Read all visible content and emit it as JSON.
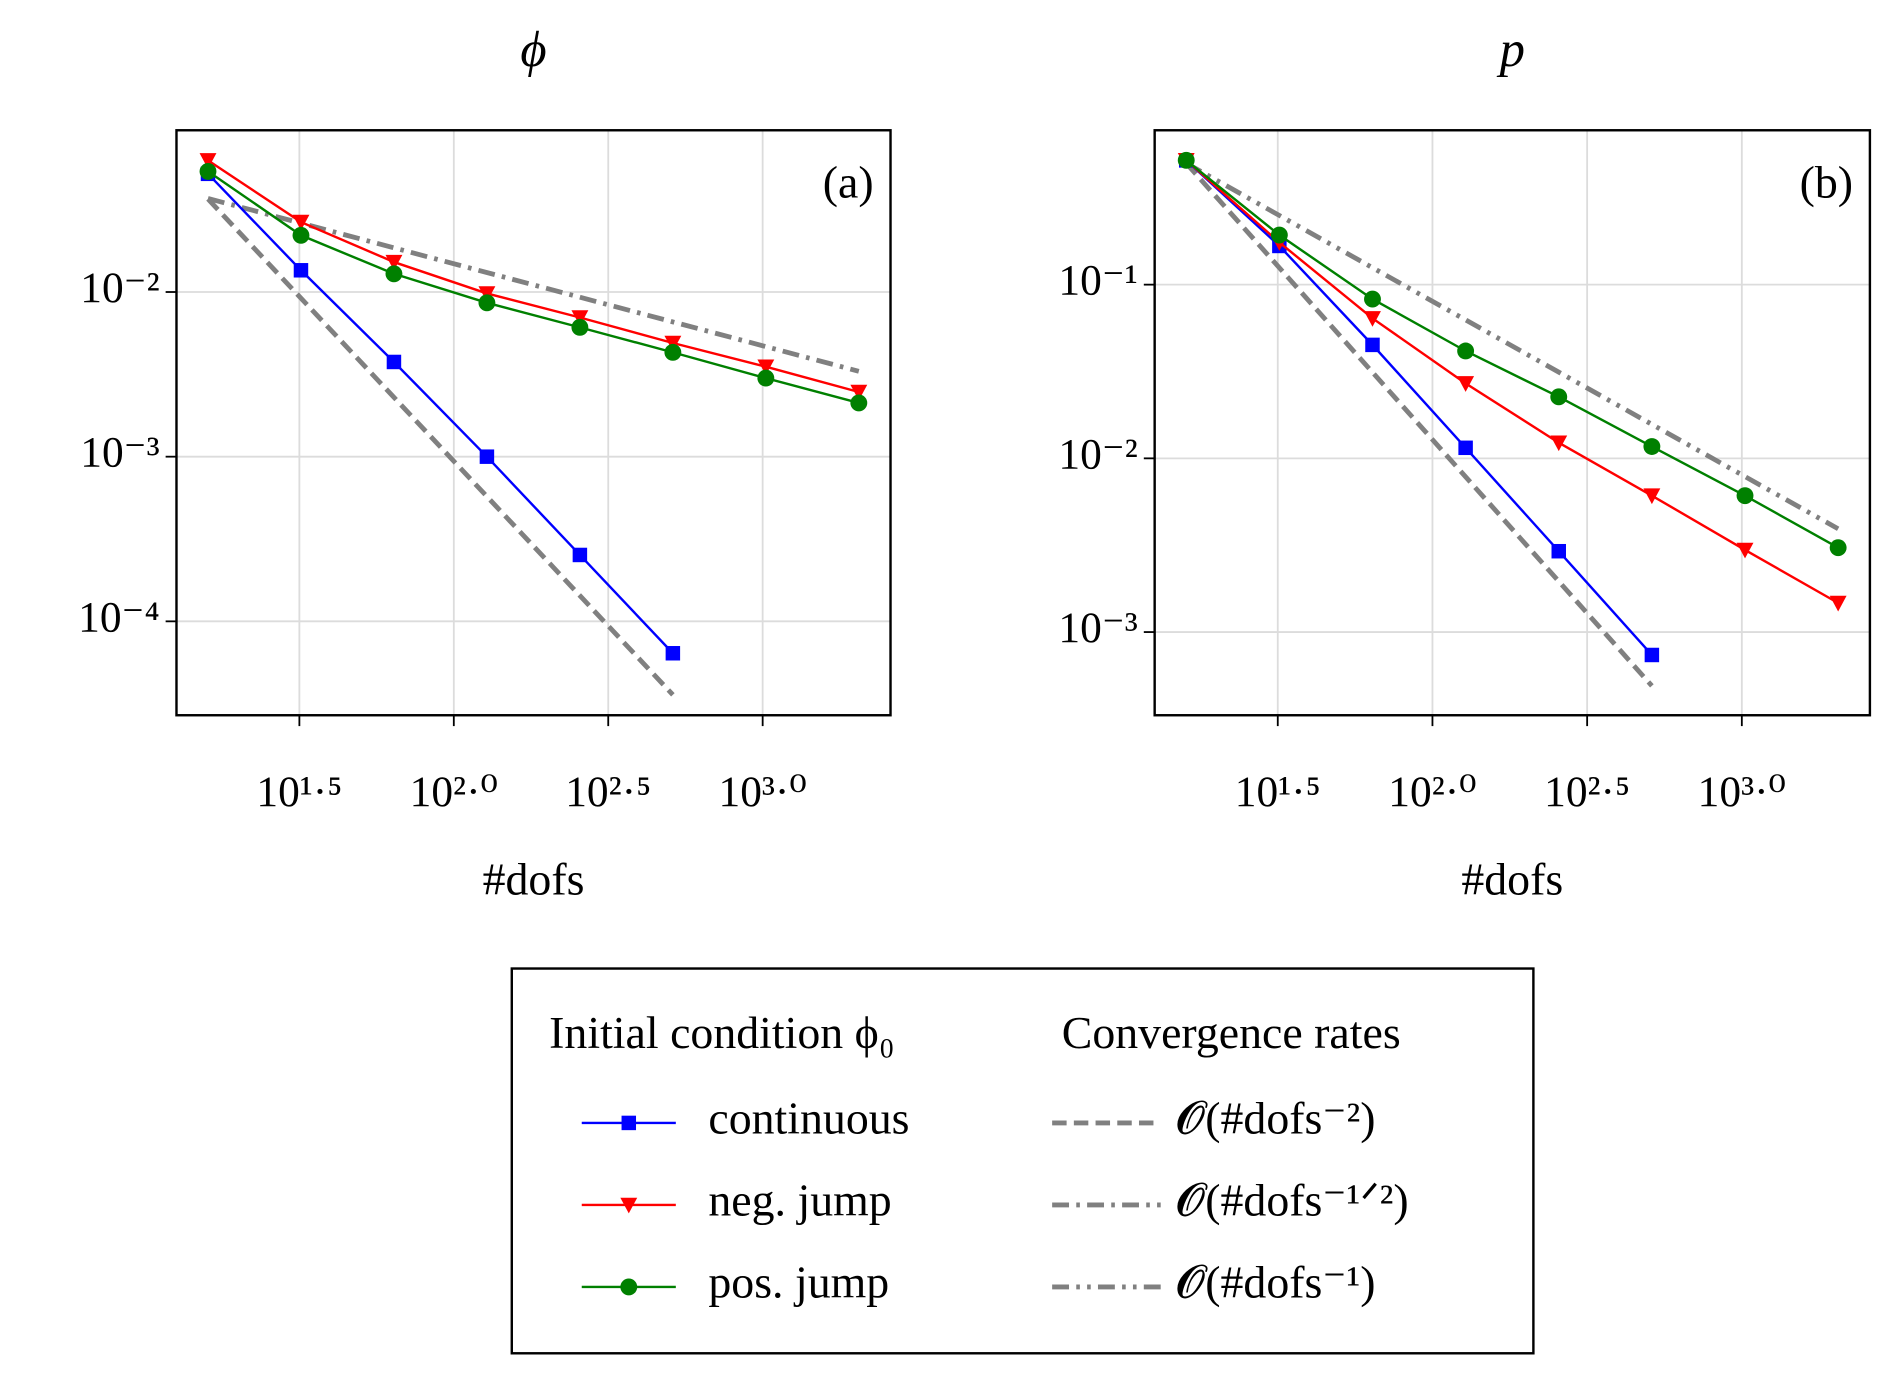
{
  "chart_data": [
    {
      "type": "line",
      "title": "ϕ",
      "panel_label": "(a)",
      "xlabel": "#dofs",
      "log_x": true,
      "log_y": true,
      "grid": true,
      "xlim": [
        12.65,
        2594
      ],
      "ylim": [
        2.69e-05,
        0.096
      ],
      "xticks": [
        {
          "value": 31.6228,
          "label": "10¹·⁵"
        },
        {
          "value": 100,
          "label": "10²·⁰"
        },
        {
          "value": 316.228,
          "label": "10²·⁵"
        },
        {
          "value": 1000,
          "label": "10³·⁰"
        }
      ],
      "yticks": [
        {
          "value": 0.01,
          "label": "10⁻²"
        },
        {
          "value": 0.001,
          "label": "10⁻³"
        },
        {
          "value": 0.0001,
          "label": "10⁻⁴"
        }
      ],
      "series": [
        {
          "name": "continuous",
          "color": "#0000ff",
          "marker": "square",
          "dash": "solid",
          "x": [
            16,
            32,
            64,
            128,
            256,
            512
          ],
          "values": [
            0.0522,
            0.01355,
            0.00376,
            0.001,
            0.000253,
            6.4e-05
          ]
        },
        {
          "name": "neg. jump",
          "color": "#ff0000",
          "marker": "triangle_down",
          "dash": "solid",
          "x": [
            16,
            32,
            64,
            128,
            256,
            512,
            1024,
            2048
          ],
          "values": [
            0.063,
            0.0266,
            0.0152,
            0.0098,
            0.007,
            0.0049,
            0.00352,
            0.00247
          ]
        },
        {
          "name": "pos. jump",
          "color": "#008000",
          "marker": "circle",
          "dash": "solid",
          "x": [
            16,
            32,
            64,
            128,
            256,
            512,
            1024,
            2048
          ],
          "values": [
            0.054,
            0.0221,
            0.0129,
            0.0086,
            0.0061,
            0.0043,
            0.003,
            0.00212
          ]
        },
        {
          "name": "𝓞(#dofs⁻²)",
          "color": "#808080",
          "dash": "dashed",
          "x": [
            16,
            512
          ],
          "values": [
            0.0367,
            3.58e-05
          ]
        },
        {
          "name": "𝓞(#dofs⁻¹ᐟ²)",
          "color": "#808080",
          "dash": "dashdot",
          "x": [
            16,
            2048
          ],
          "values": [
            0.037,
            0.0033
          ]
        }
      ]
    },
    {
      "type": "line",
      "title": "p",
      "panel_label": "(b)",
      "xlabel": "#dofs",
      "log_x": true,
      "log_y": true,
      "grid": true,
      "xlim": [
        12.65,
        2594
      ],
      "ylim": [
        0.000332,
        0.774
      ],
      "xticks": [
        {
          "value": 31.6228,
          "label": "10¹·⁵"
        },
        {
          "value": 100,
          "label": "10²·⁰"
        },
        {
          "value": 316.228,
          "label": "10²·⁵"
        },
        {
          "value": 1000,
          "label": "10³·⁰"
        }
      ],
      "yticks": [
        {
          "value": 0.1,
          "label": "10⁻¹"
        },
        {
          "value": 0.01,
          "label": "10⁻²"
        },
        {
          "value": 0.001,
          "label": "10⁻³"
        }
      ],
      "series": [
        {
          "name": "continuous",
          "color": "#0000ff",
          "marker": "square",
          "dash": "solid",
          "x": [
            16,
            32,
            64,
            128,
            256,
            512
          ],
          "values": [
            0.519,
            0.167,
            0.045,
            0.0115,
            0.00292,
            0.000738
          ]
        },
        {
          "name": "neg. jump",
          "color": "#ff0000",
          "marker": "triangle_down",
          "dash": "solid",
          "x": [
            16,
            32,
            64,
            128,
            256,
            512,
            1024,
            2048
          ],
          "values": [
            0.52,
            0.175,
            0.064,
            0.027,
            0.0123,
            0.0061,
            0.00297,
            0.00147
          ]
        },
        {
          "name": "pos. jump",
          "color": "#008000",
          "marker": "circle",
          "dash": "solid",
          "x": [
            16,
            32,
            64,
            128,
            256,
            512,
            1024,
            2048
          ],
          "values": [
            0.52,
            0.193,
            0.0826,
            0.0415,
            0.0226,
            0.0117,
            0.0061,
            0.00306
          ]
        },
        {
          "name": "𝓞(#dofs⁻²)",
          "color": "#808080",
          "dash": "dashed",
          "x": [
            16,
            512
          ],
          "values": [
            0.5,
            0.00049
          ]
        },
        {
          "name": "𝓞(#dofs⁻¹)",
          "color": "#808080",
          "dash": "dashdotdot",
          "x": [
            16,
            2048
          ],
          "values": [
            0.5,
            0.00393
          ]
        }
      ]
    }
  ],
  "legend_titles": [
    "Initial condition ϕ₀",
    "Convergence rates"
  ]
}
